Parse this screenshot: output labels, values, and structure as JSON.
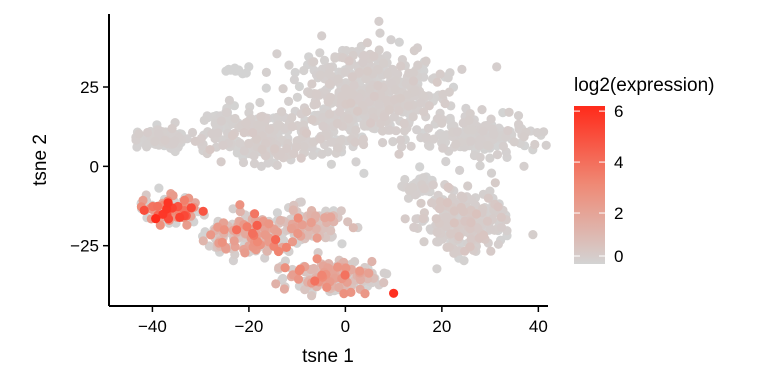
{
  "chart_data": {
    "type": "scatter",
    "title": "",
    "xlabel": "tsne 1",
    "ylabel": "tsne 2",
    "xlim": [
      -49,
      42
    ],
    "ylim": [
      -44,
      48
    ],
    "x_ticks": [
      -40,
      -20,
      0,
      20,
      40
    ],
    "y_ticks": [
      -25,
      0,
      25
    ],
    "x_tick_labels": [
      "−40",
      "−20",
      "0",
      "20",
      "40"
    ],
    "y_tick_labels": [
      "−25",
      "0",
      "25"
    ],
    "color_scale": {
      "title": "log2(expression)",
      "min": 0,
      "max": 6.2,
      "ticks": [
        0,
        2,
        4,
        6
      ],
      "tick_labels": [
        "0",
        "2",
        "4",
        "6"
      ],
      "low_color": "#d3d3d3",
      "high_color": "#ff2a1a"
    },
    "grid": false,
    "legend_position": "right",
    "clusters": [
      {
        "cx": 5,
        "cy": 22,
        "sx": 10,
        "sy": 10,
        "n": 520,
        "expr": 0.15
      },
      {
        "cx": 28,
        "cy": 10,
        "sx": 7,
        "sy": 4,
        "n": 160,
        "expr": 0.1
      },
      {
        "cx": -15,
        "cy": 9,
        "sx": 9,
        "sy": 5,
        "n": 230,
        "expr": 0.15
      },
      {
        "cx": -38,
        "cy": 9,
        "sx": 4,
        "sy": 2.5,
        "n": 90,
        "expr": 0.1
      },
      {
        "cx": -24,
        "cy": 15,
        "sx": 4,
        "sy": 2,
        "n": 30,
        "expr": 0.05
      },
      {
        "cx": -23,
        "cy": 30,
        "sx": 1.5,
        "sy": 0.8,
        "n": 10,
        "expr": 0.0
      },
      {
        "cx": 24,
        "cy": -17,
        "sx": 6,
        "sy": 6,
        "n": 280,
        "expr": 0.25
      },
      {
        "cx": 16,
        "cy": -6,
        "sx": 3,
        "sy": 2,
        "n": 40,
        "expr": 0.1
      },
      {
        "cx": -36,
        "cy": -14,
        "sx": 3.5,
        "sy": 3,
        "n": 120,
        "expr": 2.5
      },
      {
        "cx": -20,
        "cy": -22,
        "sx": 6,
        "sy": 4,
        "n": 190,
        "expr": 1.4
      },
      {
        "cx": -8,
        "cy": -19,
        "sx": 5,
        "sy": 4,
        "n": 130,
        "expr": 0.8
      },
      {
        "cx": -3,
        "cy": -35,
        "sx": 6,
        "sy": 3,
        "n": 220,
        "expr": 1.3
      }
    ],
    "highlight_point": {
      "x": 10,
      "y": -40,
      "expr": 6
    }
  }
}
